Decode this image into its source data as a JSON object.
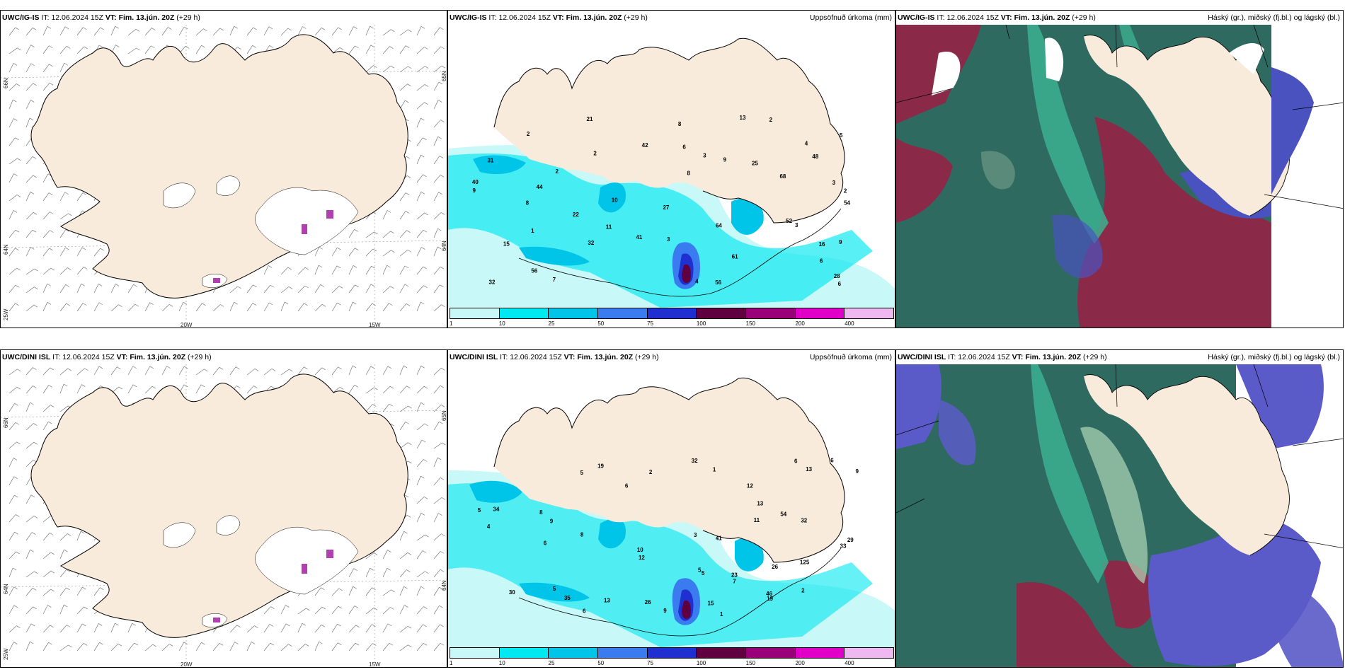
{
  "rows": [
    {
      "model": "UWC/IG-IS",
      "it_label": "IT:",
      "it_value": "12.06.2024 15Z",
      "vt_label": "VT:",
      "vt_value": "Fim. 13.jún. 20Z",
      "lead": "(+29 h)",
      "precip_numbers": [
        "2",
        "3",
        "9",
        "2",
        "10",
        "9",
        "11",
        "13",
        "16",
        "4",
        "2",
        "3",
        "68",
        "32",
        "15",
        "27",
        "22",
        "40",
        "21",
        "42",
        "28",
        "6",
        "56",
        "1",
        "8",
        "2",
        "32",
        "61",
        "4",
        "5",
        "7",
        "6",
        "8",
        "8",
        "44",
        "9",
        "54",
        "64",
        "48",
        "52",
        "56",
        "31",
        "41",
        "3",
        "6",
        "2",
        "3",
        "25"
      ]
    },
    {
      "model": "UWC/DINI ISL",
      "it_label": "IT:",
      "it_value": "12.06.2024 15Z",
      "vt_label": "VT:",
      "vt_value": "Fim. 13.jún. 20Z",
      "lead": "(+29 h)",
      "precip_numbers": [
        "1",
        "5",
        "5",
        "8",
        "54",
        "15",
        "33",
        "8",
        "12",
        "35",
        "30",
        "5",
        "10",
        "5",
        "11",
        "6",
        "4",
        "13",
        "26",
        "32",
        "46",
        "5",
        "6",
        "19",
        "41",
        "13",
        "6",
        "9",
        "9",
        "6",
        "7",
        "6",
        "12",
        "13",
        "19",
        "26",
        "32",
        "34",
        "29",
        "23",
        "2",
        "3",
        "9",
        "2",
        "1",
        "125"
      ]
    }
  ],
  "precip_title": "Uppsöfnuð úrkoma (mm)",
  "cloud_title": "Háský (gr.), miðský (fj.bl.) og lágský (bl.)",
  "wind_axis": {
    "lat_labels": [
      "66N",
      "64N",
      "65N"
    ],
    "lat_right": [
      "65N",
      "64N"
    ],
    "lon_labels": [
      "25W",
      "20W",
      "15W"
    ]
  },
  "colorbar": {
    "ticks": [
      "1",
      "10",
      "25",
      "50",
      "75",
      "100",
      "150",
      "200",
      "400"
    ],
    "colors": [
      "#c8f8f8",
      "#00e8f0",
      "#00c4e8",
      "#3a7cf0",
      "#2030d0",
      "#600040",
      "#9a0078",
      "#e000c8",
      "#f0b8f0"
    ]
  },
  "colors": {
    "land": "#f8ebdc",
    "ice": "#ffffff",
    "cloud_high": "#8a7a8a",
    "cloud_mid": "#2e6a60",
    "cloud_low": "#6060c8"
  }
}
